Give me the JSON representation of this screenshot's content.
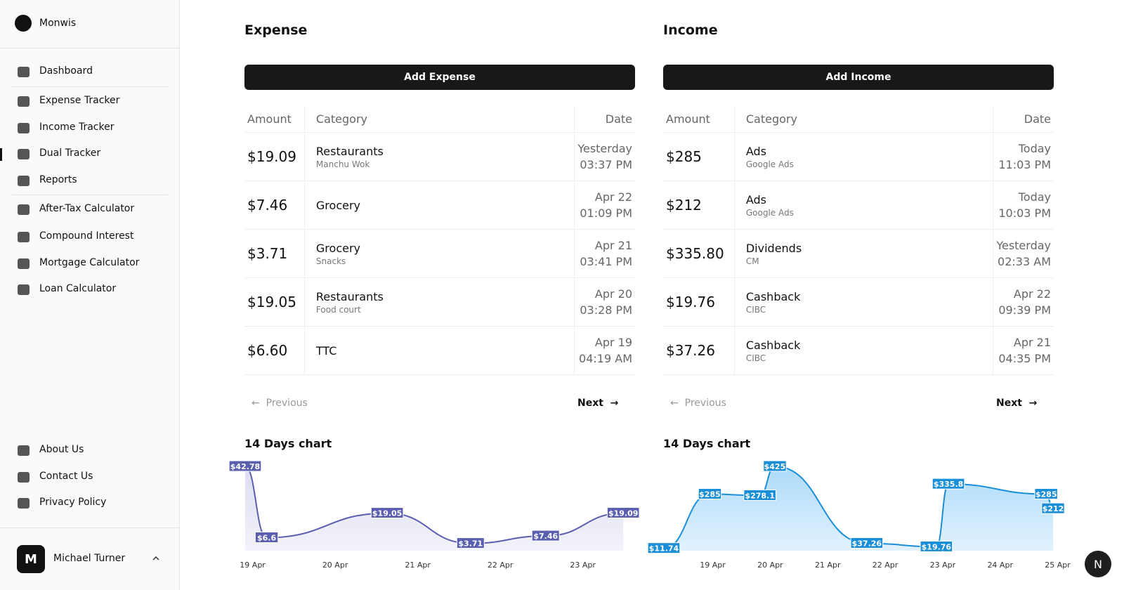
{
  "sidebar": {
    "brand": "Monwis",
    "nav": [
      "Dashboard",
      "Expense Tracker",
      "Income Tracker",
      "Dual Tracker",
      "Reports",
      "After-Tax Calculator",
      "Compound Interest",
      "Mortgage Calculator",
      "Loan Calculator"
    ],
    "footer_nav": [
      "About Us",
      "Contact Us",
      "Privacy Policy"
    ],
    "user": {
      "initial": "M",
      "name": "Michael Turner"
    }
  },
  "expense": {
    "title": "Expense",
    "button": "Add Expense",
    "headers": [
      "Amount",
      "Category",
      "Date"
    ],
    "rows": [
      {
        "amount": "$19.09",
        "category": "Restaurants",
        "note": "Manchu Wok",
        "date": "Yesterday",
        "time": "03:37 PM"
      },
      {
        "amount": "$7.46",
        "category": "Grocery",
        "date": "Apr 22",
        "time": "01:09 PM"
      },
      {
        "amount": "$3.71",
        "category": "Grocery",
        "note": "Snacks",
        "date": "Apr 21",
        "time": "03:41 PM"
      },
      {
        "amount": "$19.05",
        "category": "Restaurants",
        "note": "Food court",
        "date": "Apr 20",
        "time": "03:28 PM"
      },
      {
        "amount": "$6.60",
        "category": "TTC",
        "date": "Apr 19",
        "time": "04:19 AM"
      }
    ],
    "pagination": {
      "previous": "Previous",
      "next": "Next"
    },
    "chart": {
      "type": "area",
      "title": "14 Days chart",
      "color": "#5b5fb0",
      "fill": "#dadbf0",
      "x": [
        18.91,
        19.17,
        20.63,
        21.64,
        22.55,
        23.49
      ],
      "values": [
        42.78,
        6.6,
        19.05,
        3.71,
        7.46,
        19.09
      ],
      "value_labels": [
        "$42.78",
        "$6.6",
        "$19.05",
        "$3.71",
        "$7.46",
        "$19.09"
      ],
      "xlim": [
        18.91,
        23.65
      ],
      "ylim": [
        0,
        42.78
      ],
      "xticks": [
        {
          "value": 19,
          "label": "19 Apr"
        },
        {
          "value": 20,
          "label": "20 Apr"
        },
        {
          "value": 21,
          "label": "21 Apr"
        },
        {
          "value": 22,
          "label": "22 Apr"
        },
        {
          "value": 23,
          "label": "23 Apr"
        }
      ]
    }
  },
  "income": {
    "title": "Income",
    "button": "Add Income",
    "headers": [
      "Amount",
      "Category",
      "Date"
    ],
    "rows": [
      {
        "amount": "$285",
        "category": "Ads",
        "note": "Google Ads",
        "date": "Today",
        "time": "11:03 PM"
      },
      {
        "amount": "$212",
        "category": "Ads",
        "note": "Google Ads",
        "date": "Today",
        "time": "10:03 PM"
      },
      {
        "amount": "$335.80",
        "category": "Dividends",
        "note": "CM",
        "date": "Yesterday",
        "time": "02:33 AM"
      },
      {
        "amount": "$19.76",
        "category": "Cashback",
        "note": "CIBC",
        "date": "Apr 22",
        "time": "09:39 PM"
      },
      {
        "amount": "$37.26",
        "category": "Cashback",
        "note": "CIBC",
        "date": "Apr 21",
        "time": "04:35 PM"
      }
    ],
    "pagination": {
      "previous": "Previous",
      "next": "Next"
    },
    "chart": {
      "type": "area",
      "title": "14 Days chart",
      "color": "#1a8fd8",
      "fill": "#a9d9fa",
      "x": [
        18.15,
        18.95,
        19.82,
        20.08,
        21.68,
        22.89,
        23.1,
        24.8,
        24.92
      ],
      "values": [
        11.74,
        285,
        278.1,
        425,
        37.26,
        19.76,
        335.8,
        285,
        212
      ],
      "value_labels": [
        "$11.74",
        "$285",
        "$278.1",
        "$425",
        "$37.26",
        "$19.76",
        "$335.8",
        "$285",
        "$212"
      ],
      "xlim": [
        18.15,
        24.92
      ],
      "ylim": [
        0,
        425
      ],
      "xticks": [
        {
          "value": 19,
          "label": "19 Apr"
        },
        {
          "value": 20,
          "label": "20 Apr"
        },
        {
          "value": 21,
          "label": "21 Apr"
        },
        {
          "value": 22,
          "label": "22 Apr"
        },
        {
          "value": 23,
          "label": "23 Apr"
        },
        {
          "value": 24,
          "label": "24 Apr"
        },
        {
          "value": 25,
          "label": "25 Apr"
        }
      ]
    }
  },
  "badge": "N"
}
